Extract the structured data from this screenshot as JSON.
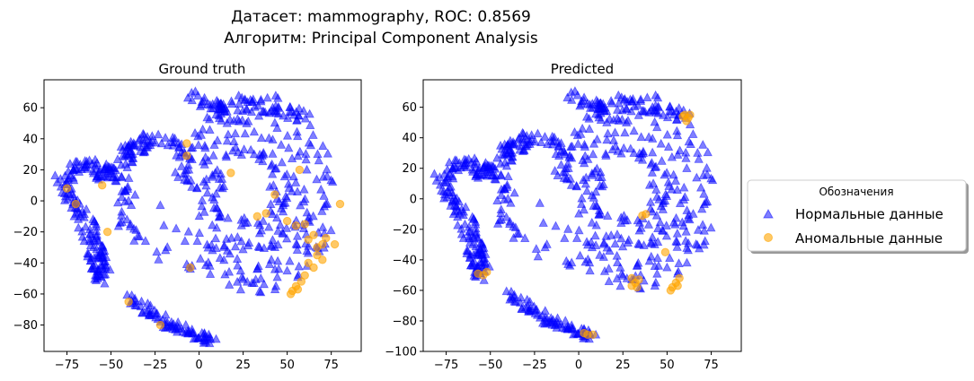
{
  "figure": {
    "suptitle_line1": "Датасет: mammography, ROC: 0.8569",
    "suptitle_line2": "Алгоритм: Principal Component Analysis"
  },
  "legend": {
    "title": "Обозначения",
    "entries": [
      {
        "label": "Нормальные данные",
        "marker": "triangle",
        "color": "#0000ff"
      },
      {
        "label": "Аномальные данные",
        "marker": "circle",
        "color": "#ffa500"
      }
    ]
  },
  "chart_data": [
    {
      "type": "scatter",
      "title": "Ground truth",
      "xlabel": "",
      "ylabel": "",
      "xlim": [
        -88,
        92
      ],
      "ylim": [
        -97,
        78
      ],
      "xticks": [
        -75,
        -50,
        -25,
        0,
        25,
        50,
        75
      ],
      "yticks": [
        -80,
        -60,
        -40,
        -20,
        0,
        20,
        40,
        60
      ],
      "grid": false,
      "series": [
        {
          "marker": "triangle",
          "color": "#0000ff",
          "alpha": 0.5,
          "regions": "dense cluster of normal points forming a left arc, a large right cloud, a central small cluster and a lower-left tail"
        },
        {
          "marker": "circle",
          "color": "#ffa500",
          "alpha": 0.6,
          "points": [
            [
              -75,
              8
            ],
            [
              -70,
              -2
            ],
            [
              -55,
              10
            ],
            [
              -52,
              -20
            ],
            [
              -7,
              37
            ],
            [
              -7,
              29
            ],
            [
              18,
              18
            ],
            [
              -5,
              -43
            ],
            [
              -40,
              -65
            ],
            [
              -22,
              -80
            ],
            [
              43,
              4
            ],
            [
              38,
              -8
            ],
            [
              33,
              -10
            ],
            [
              57,
              20
            ],
            [
              50,
              -13
            ],
            [
              55,
              -16
            ],
            [
              60,
              -15
            ],
            [
              62,
              -25
            ],
            [
              65,
              -22
            ],
            [
              67,
              -30
            ],
            [
              70,
              -28
            ],
            [
              72,
              -24
            ],
            [
              77,
              -28
            ],
            [
              80,
              -2
            ],
            [
              62,
              -40
            ],
            [
              65,
              -43
            ],
            [
              67,
              -35
            ],
            [
              70,
              -38
            ],
            [
              60,
              -48
            ],
            [
              58,
              -52
            ],
            [
              55,
              -55
            ],
            [
              53,
              -58
            ],
            [
              56,
              -57
            ],
            [
              52,
              -60
            ]
          ]
        }
      ]
    },
    {
      "type": "scatter",
      "title": "Predicted",
      "xlabel": "",
      "ylabel": "",
      "xlim": [
        -88,
        92
      ],
      "ylim": [
        -100,
        78
      ],
      "xticks": [
        -75,
        -50,
        -25,
        0,
        25,
        50,
        75
      ],
      "yticks": [
        -100,
        -80,
        -60,
        -40,
        -20,
        0,
        20,
        40,
        60
      ],
      "grid": false,
      "series": [
        {
          "marker": "triangle",
          "color": "#0000ff",
          "alpha": 0.5,
          "regions": "same layout as ground truth"
        },
        {
          "marker": "circle",
          "color": "#ffa500",
          "alpha": 0.6,
          "points": [
            [
              59,
              54
            ],
            [
              62,
              53
            ],
            [
              60,
              55
            ],
            [
              63,
              55
            ],
            [
              61,
              51
            ],
            [
              38,
              -10
            ],
            [
              36,
              -11
            ],
            [
              -57,
              -49
            ],
            [
              -54,
              -50
            ],
            [
              -52,
              -48
            ],
            [
              30,
              -52
            ],
            [
              32,
              -55
            ],
            [
              34,
              -53
            ],
            [
              30,
              -57
            ],
            [
              33,
              -58
            ],
            [
              55,
              -55
            ],
            [
              57,
              -52
            ],
            [
              53,
              -58
            ],
            [
              52,
              -60
            ],
            [
              56,
              -57
            ],
            [
              49,
              -35
            ],
            [
              3,
              -88
            ],
            [
              5,
              -89
            ],
            [
              8,
              -89
            ]
          ]
        }
      ]
    }
  ]
}
